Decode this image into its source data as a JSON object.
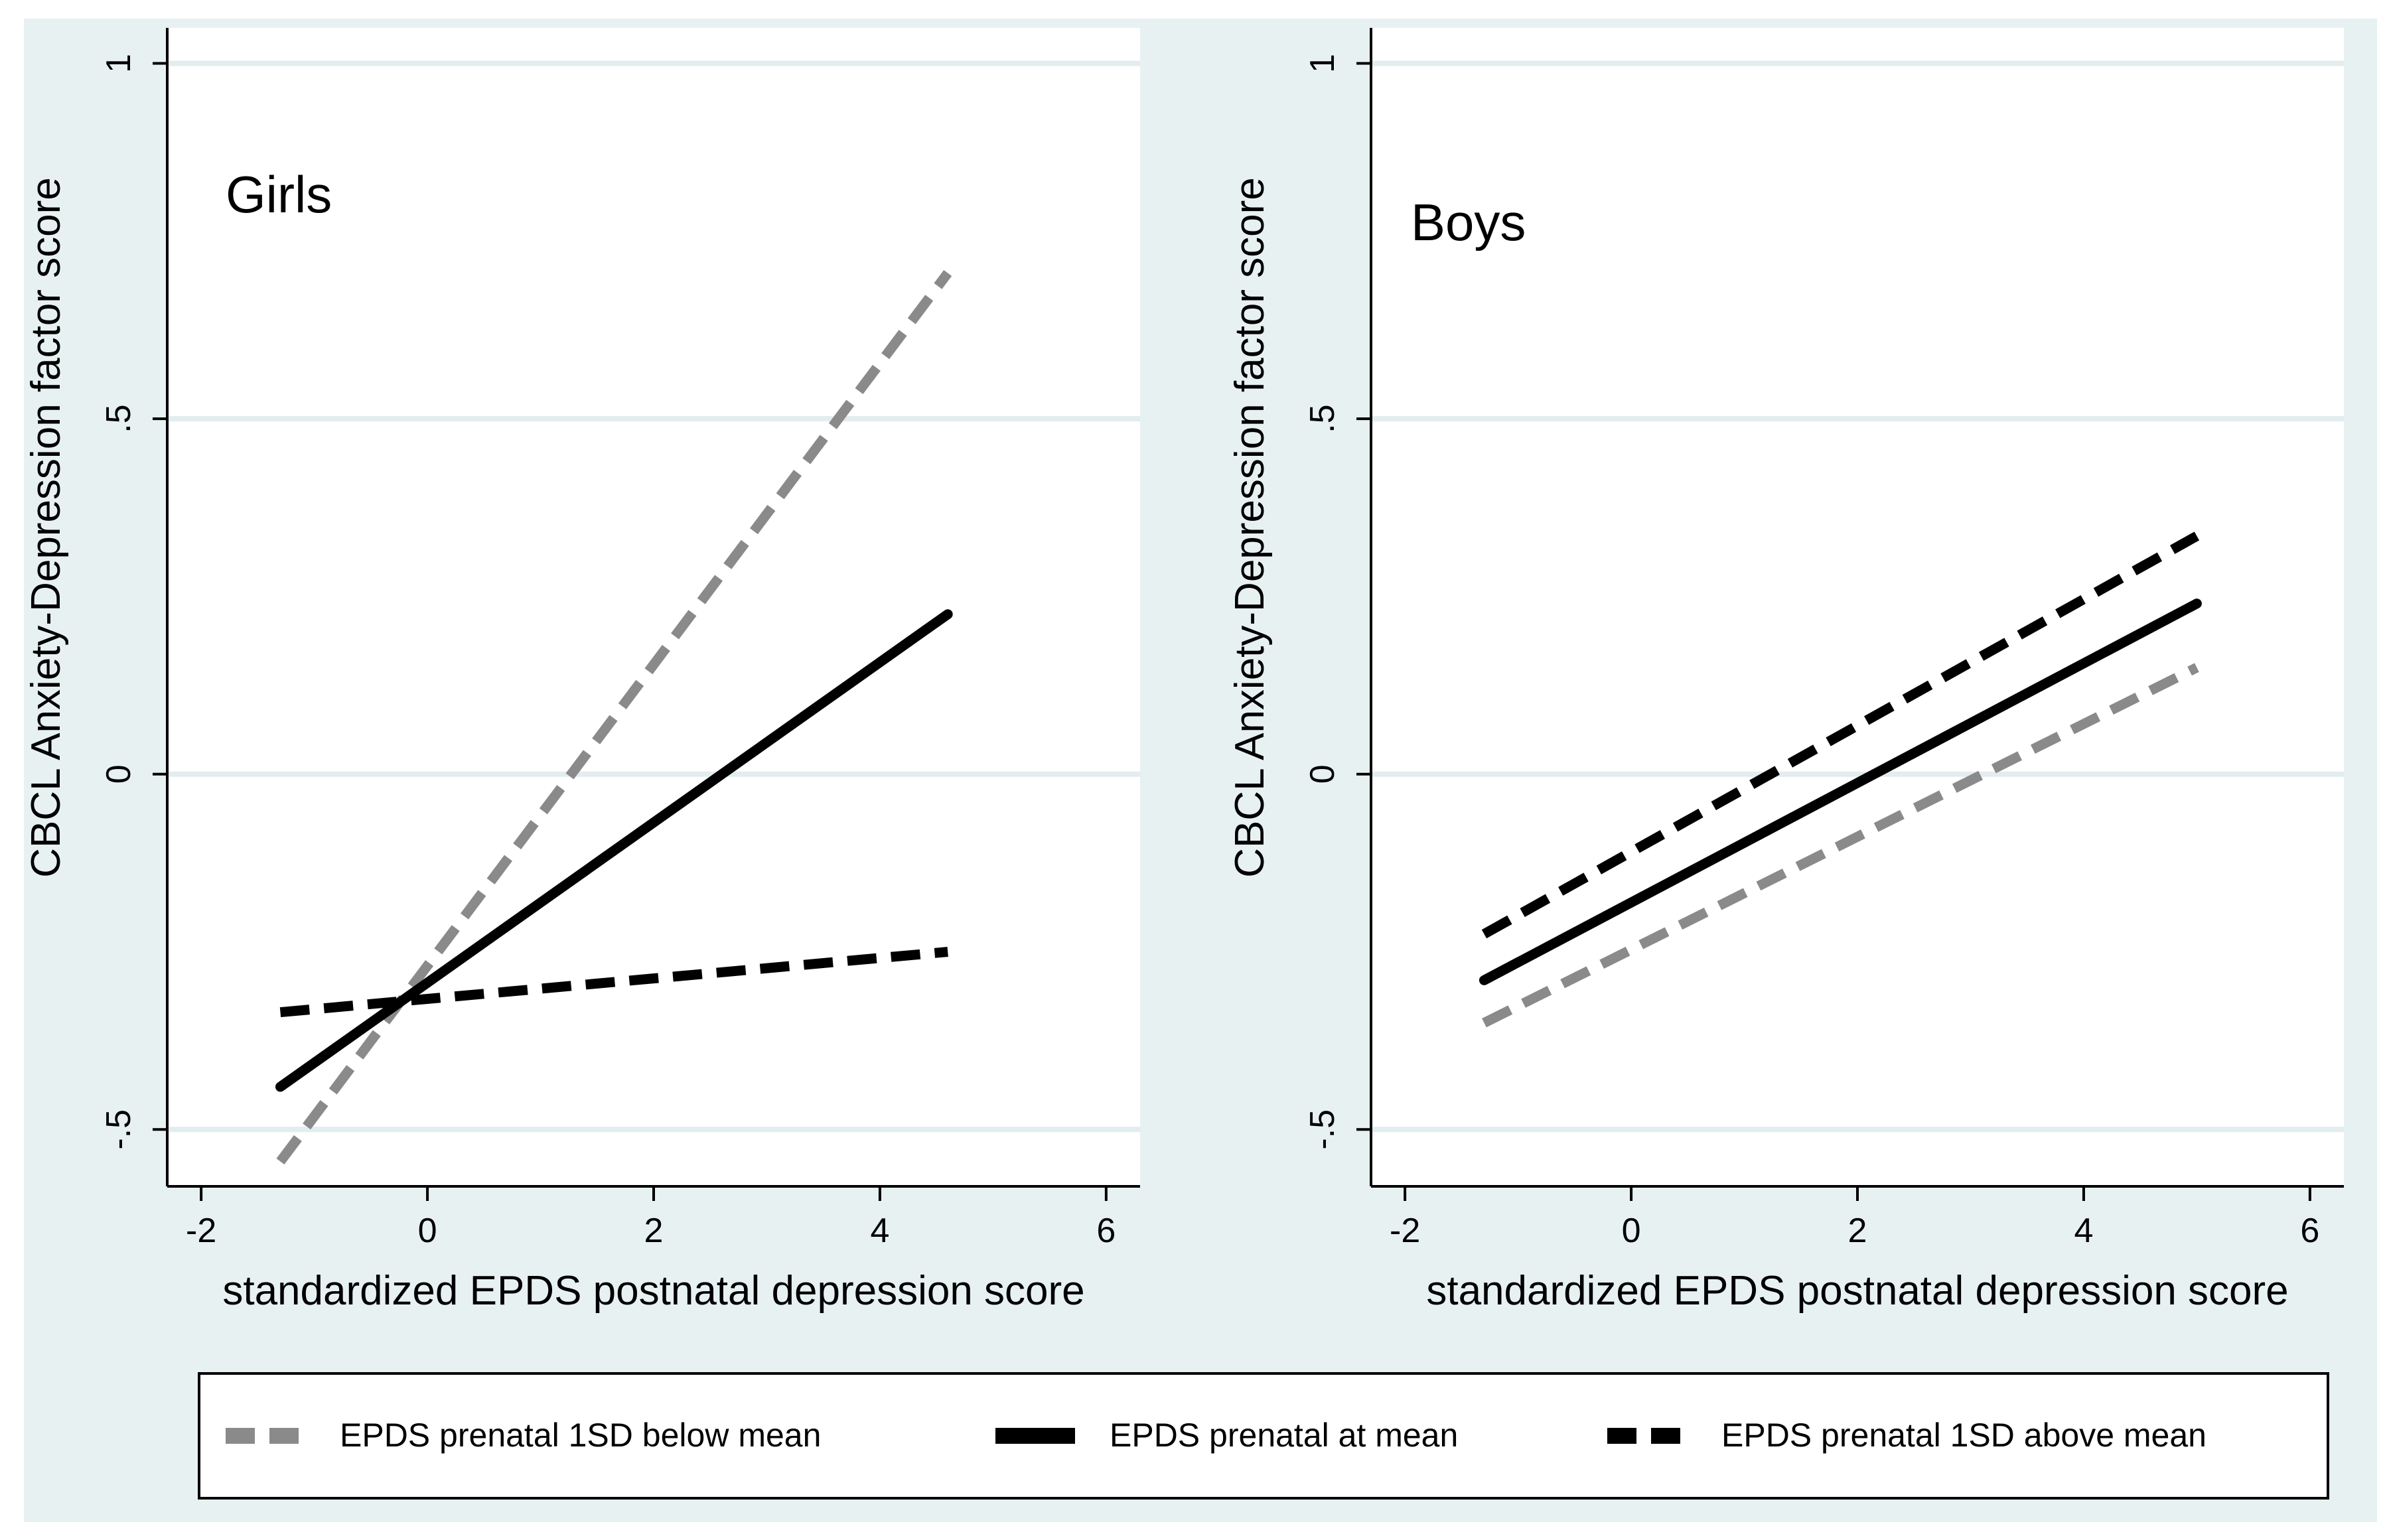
{
  "colors": {
    "outer_background": "#e8f1f2",
    "plot_background": "#ffffff",
    "gridline": "#e3ecee",
    "gray_line": "#8a8a8a",
    "black_line": "#000000"
  },
  "legend": {
    "items": [
      {
        "label": "EPDS prenatal 1SD below mean",
        "style": "dashed-gray"
      },
      {
        "label": "EPDS prenatal at mean",
        "style": "solid-black"
      },
      {
        "label": "EPDS prenatal 1SD above mean",
        "style": "dashed-black"
      }
    ]
  },
  "chart_data": [
    {
      "type": "line",
      "title": "Girls",
      "xlabel": "standardized EPDS postnatal depression score",
      "ylabel": "CBCL Anxiety-Depression factor score",
      "xlim": [
        -2.3,
        6.3
      ],
      "ylim": [
        -0.58,
        1.05
      ],
      "xticks": [
        -2,
        0,
        2,
        4,
        6
      ],
      "xtick_labels": [
        "-2",
        "0",
        "2",
        "4",
        "6"
      ],
      "yticks": [
        -0.5,
        0,
        0.5,
        1
      ],
      "ytick_labels": [
        "-.5",
        "0",
        ".5",
        "1"
      ],
      "grid": true,
      "series": [
        {
          "name": "EPDS prenatal 1SD below mean",
          "x": [
            -1.3,
            4.6
          ],
          "y": [
            -0.545,
            0.705
          ]
        },
        {
          "name": "EPDS prenatal at mean",
          "x": [
            -1.3,
            4.6
          ],
          "y": [
            -0.44,
            0.225
          ]
        },
        {
          "name": "EPDS prenatal 1SD above mean",
          "x": [
            -1.3,
            4.6
          ],
          "y": [
            -0.335,
            -0.25
          ]
        }
      ]
    },
    {
      "type": "line",
      "title": "Boys",
      "xlabel": "standardized EPDS postnatal depression score",
      "ylabel": "CBCL Anxiety-Depression factor score",
      "xlim": [
        -2.3,
        6.3
      ],
      "ylim": [
        -0.58,
        1.05
      ],
      "xticks": [
        -2,
        0,
        2,
        4,
        6
      ],
      "xtick_labels": [
        "-2",
        "0",
        "2",
        "4",
        "6"
      ],
      "yticks": [
        -0.5,
        0,
        0.5,
        1
      ],
      "ytick_labels": [
        "-.5",
        "0",
        ".5",
        "1"
      ],
      "grid": true,
      "series": [
        {
          "name": "EPDS prenatal 1SD below mean",
          "x": [
            -1.3,
            5.0
          ],
          "y": [
            -0.35,
            0.15
          ]
        },
        {
          "name": "EPDS prenatal at mean",
          "x": [
            -1.3,
            5.0
          ],
          "y": [
            -0.29,
            0.24
          ]
        },
        {
          "name": "EPDS prenatal 1SD above mean",
          "x": [
            -1.3,
            5.0
          ],
          "y": [
            -0.225,
            0.335
          ]
        }
      ]
    }
  ]
}
